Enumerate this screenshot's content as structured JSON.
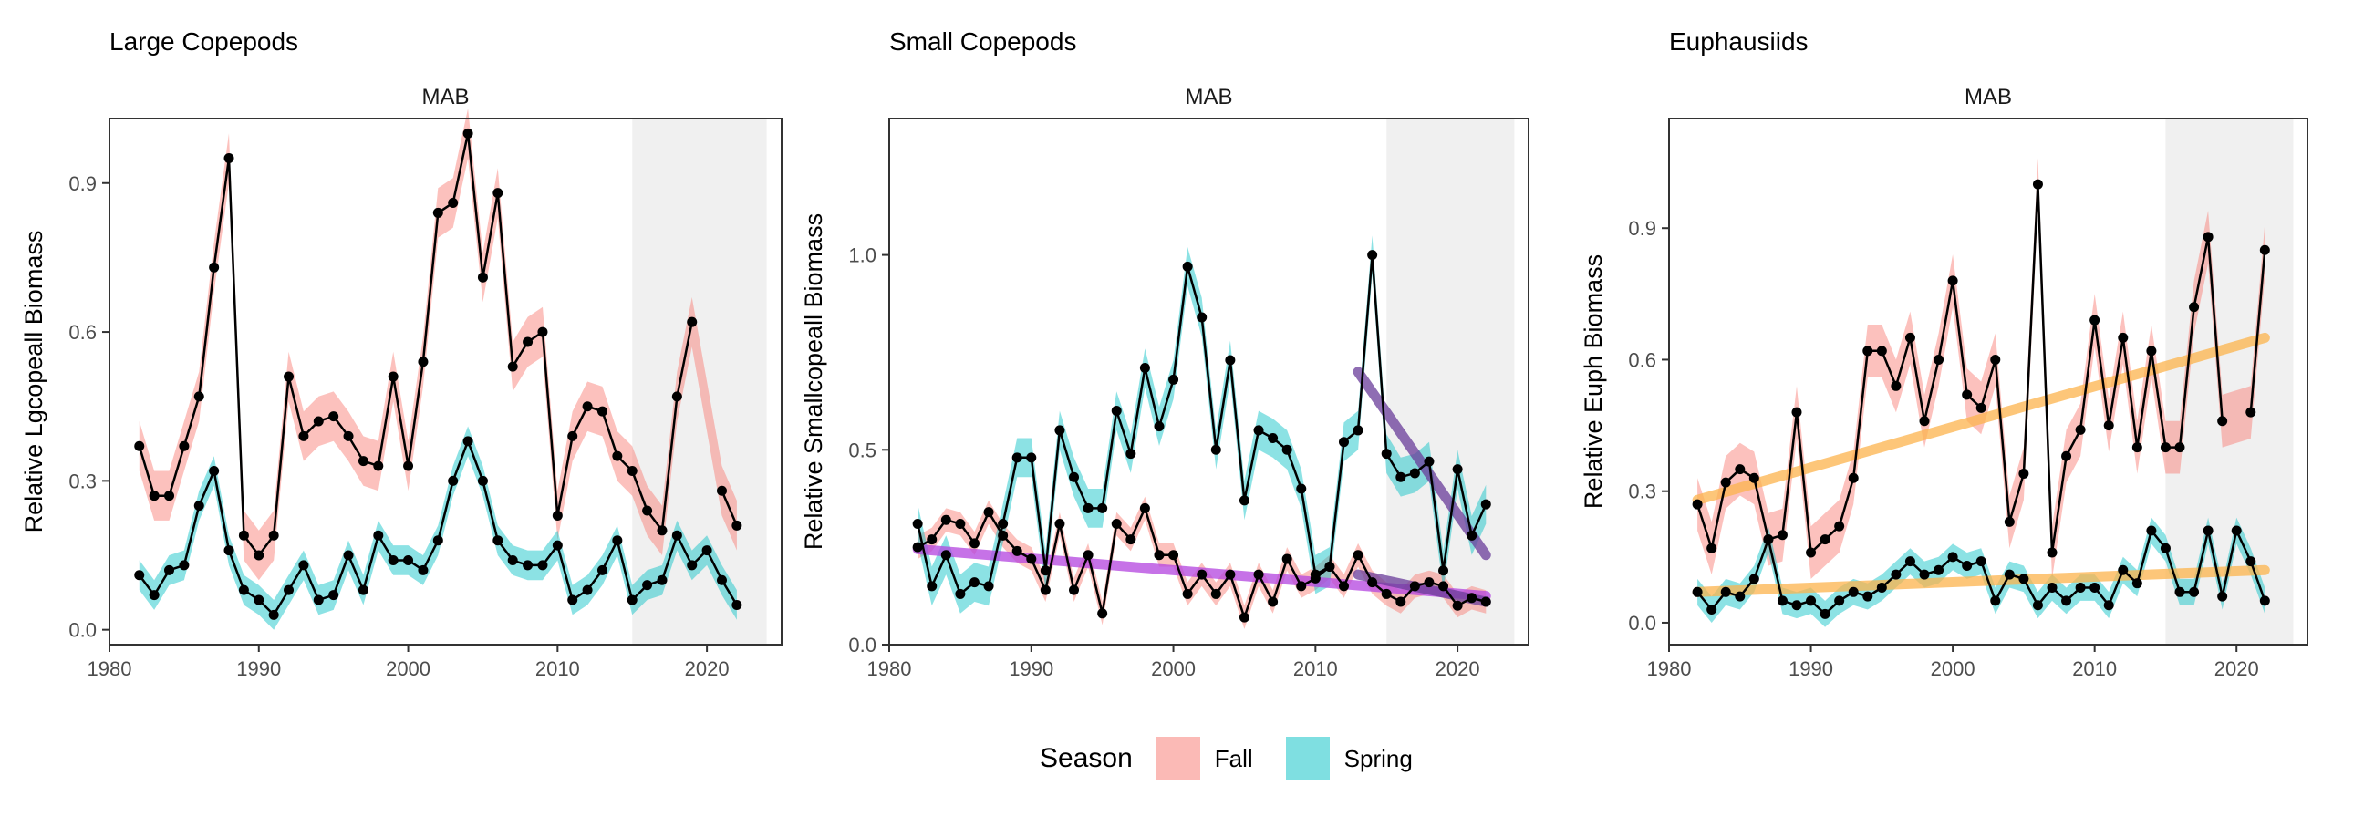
{
  "legend": {
    "title": "Season",
    "items": [
      {
        "label": "Fall",
        "color": "#F8766D"
      },
      {
        "label": "Spring",
        "color": "#00BFC4"
      }
    ]
  },
  "style": {
    "panel_shading": "#ebebeb",
    "fall_band": "#F8766D",
    "spring_band": "#00BFC4",
    "line_color": "#000000",
    "point_color": "#000000",
    "trend_colors": {
      "orange": "#FDB44D",
      "purple": "#6A3D9A",
      "violet": "#B444E0"
    }
  },
  "chart_data": [
    {
      "type": "line",
      "title": "Large Copepods",
      "facet": "MAB",
      "xlabel": "",
      "ylabel": "Relative Lgcopeall Biomass",
      "xlim": [
        1980,
        2025
      ],
      "ylim": [
        -0.03,
        1.03
      ],
      "xticks": [
        1980,
        1990,
        2000,
        2010,
        2020
      ],
      "yticks": [
        0.0,
        0.3,
        0.6,
        0.9
      ],
      "ytick_labels": [
        "0.0",
        "0.3",
        "0.6",
        "0.9"
      ],
      "grid": false,
      "shaded_range": [
        2015,
        2024
      ],
      "series": [
        {
          "name": "Fall",
          "x": [
            1982,
            1983,
            1984,
            1985,
            1986,
            1987,
            1988,
            1989,
            1990,
            1991,
            1992,
            1993,
            1994,
            1995,
            1996,
            1997,
            1998,
            1999,
            2000,
            2001,
            2002,
            2003,
            2004,
            2005,
            2006,
            2007,
            2008,
            2009,
            2010,
            2011,
            2012,
            2013,
            2014,
            2015,
            2016,
            2017,
            2018,
            2019,
            2021,
            2022
          ],
          "values": [
            0.37,
            0.27,
            0.27,
            0.37,
            0.47,
            0.73,
            0.95,
            0.19,
            0.15,
            0.19,
            0.51,
            0.39,
            0.42,
            0.43,
            0.39,
            0.34,
            0.33,
            0.51,
            0.33,
            0.54,
            0.84,
            0.86,
            1.0,
            0.71,
            0.88,
            0.53,
            0.58,
            0.6,
            0.23,
            0.39,
            0.45,
            0.44,
            0.35,
            0.32,
            0.24,
            0.2,
            0.47,
            0.62,
            0.28,
            0.21
          ],
          "band": 0.05
        },
        {
          "name": "Spring",
          "x": [
            1982,
            1983,
            1984,
            1985,
            1986,
            1987,
            1988,
            1989,
            1990,
            1991,
            1992,
            1993,
            1994,
            1995,
            1996,
            1997,
            1998,
            1999,
            2000,
            2001,
            2002,
            2003,
            2004,
            2005,
            2006,
            2007,
            2008,
            2009,
            2010,
            2011,
            2012,
            2013,
            2014,
            2015,
            2016,
            2017,
            2018,
            2019,
            2020,
            2021,
            2022
          ],
          "values": [
            0.11,
            0.07,
            0.12,
            0.13,
            0.25,
            0.32,
            0.16,
            0.08,
            0.06,
            0.03,
            0.08,
            0.13,
            0.06,
            0.07,
            0.15,
            0.08,
            0.19,
            0.14,
            0.14,
            0.12,
            0.18,
            0.3,
            0.38,
            0.3,
            0.18,
            0.14,
            0.13,
            0.13,
            0.17,
            0.06,
            0.08,
            0.12,
            0.18,
            0.06,
            0.09,
            0.1,
            0.19,
            0.13,
            0.16,
            0.1,
            0.05
          ],
          "band": 0.03
        }
      ],
      "trends": []
    },
    {
      "type": "line",
      "title": "Small Copepods",
      "facet": "MAB",
      "xlabel": "",
      "ylabel": "Relative Smallcopeall Biomass",
      "xlim": [
        1980,
        2025
      ],
      "ylim": [
        0.0,
        1.35
      ],
      "xticks": [
        1980,
        1990,
        2000,
        2010,
        2020
      ],
      "yticks": [
        0.0,
        0.5,
        1.0
      ],
      "ytick_labels": [
        "0.0",
        "0.5",
        "1.0"
      ],
      "grid": false,
      "shaded_range": [
        2015,
        2024
      ],
      "series": [
        {
          "name": "Fall",
          "x": [
            1982,
            1983,
            1984,
            1985,
            1986,
            1987,
            1988,
            1989,
            1990,
            1991,
            1992,
            1993,
            1994,
            1995,
            1996,
            1997,
            1998,
            1999,
            2000,
            2001,
            2002,
            2003,
            2004,
            2005,
            2006,
            2007,
            2008,
            2009,
            2010,
            2011,
            2012,
            2013,
            2014,
            2015,
            2016,
            2017,
            2018,
            2019,
            2020,
            2021,
            2022
          ],
          "values": [
            0.25,
            0.27,
            0.32,
            0.31,
            0.26,
            0.34,
            0.28,
            0.24,
            0.22,
            0.14,
            0.31,
            0.14,
            0.23,
            0.08,
            0.31,
            0.27,
            0.35,
            0.23,
            0.23,
            0.13,
            0.18,
            0.13,
            0.18,
            0.07,
            0.18,
            0.11,
            0.22,
            0.15,
            0.17,
            0.2,
            0.15,
            0.23,
            0.16,
            0.13,
            0.11,
            0.15,
            0.16,
            0.15,
            0.1,
            0.12,
            0.11
          ],
          "band": 0.03
        },
        {
          "name": "Spring",
          "x": [
            1982,
            1983,
            1984,
            1985,
            1986,
            1987,
            1988,
            1989,
            1990,
            1991,
            1992,
            1993,
            1994,
            1995,
            1996,
            1997,
            1998,
            1999,
            2000,
            2001,
            2002,
            2003,
            2004,
            2005,
            2006,
            2007,
            2008,
            2009,
            2010,
            2011,
            2012,
            2013,
            2014,
            2015,
            2016,
            2017,
            2018,
            2019,
            2020,
            2021,
            2022
          ],
          "values": [
            0.31,
            0.15,
            0.23,
            0.13,
            0.16,
            0.15,
            0.31,
            0.48,
            0.48,
            0.19,
            0.55,
            0.43,
            0.35,
            0.35,
            0.6,
            0.49,
            0.71,
            0.56,
            0.68,
            0.97,
            0.84,
            0.5,
            0.73,
            0.37,
            0.55,
            0.53,
            0.5,
            0.4,
            0.18,
            0.2,
            0.52,
            0.55,
            1.0,
            0.49,
            0.43,
            0.44,
            0.47,
            0.19,
            0.45,
            0.28,
            0.36
          ],
          "band": 0.05
        }
      ],
      "trends": [
        {
          "color": "violet",
          "x": [
            1982,
            2022
          ],
          "y": [
            0.245,
            0.125
          ]
        },
        {
          "color": "purple",
          "x": [
            2013,
            2022
          ],
          "y": [
            0.7,
            0.23
          ]
        },
        {
          "color": "purple",
          "x": [
            2013,
            2022
          ],
          "y": [
            0.18,
            0.11
          ]
        }
      ]
    },
    {
      "type": "line",
      "title": "Euphausiids",
      "facet": "MAB",
      "xlabel": "",
      "ylabel": "Relative Euph Biomass",
      "xlim": [
        1980,
        2025
      ],
      "ylim": [
        -0.05,
        1.15
      ],
      "xticks": [
        1980,
        1990,
        2000,
        2010,
        2020
      ],
      "yticks": [
        0.0,
        0.3,
        0.6,
        0.9
      ],
      "ytick_labels": [
        "0.0",
        "0.3",
        "0.6",
        "0.9"
      ],
      "grid": false,
      "shaded_range": [
        2015,
        2024
      ],
      "series": [
        {
          "name": "Fall",
          "x": [
            1982,
            1983,
            1984,
            1985,
            1986,
            1987,
            1988,
            1989,
            1990,
            1991,
            1992,
            1993,
            1994,
            1995,
            1996,
            1997,
            1998,
            1999,
            2000,
            2001,
            2002,
            2003,
            2004,
            2005,
            2006,
            2007,
            2008,
            2009,
            2010,
            2011,
            2012,
            2013,
            2014,
            2015,
            2016,
            2017,
            2018,
            2019,
            2021,
            2022
          ],
          "values": [
            0.27,
            0.17,
            0.32,
            0.35,
            0.33,
            0.19,
            0.2,
            0.48,
            0.16,
            0.19,
            0.22,
            0.33,
            0.62,
            0.62,
            0.54,
            0.65,
            0.46,
            0.6,
            0.78,
            0.52,
            0.49,
            0.6,
            0.23,
            0.34,
            1.0,
            0.16,
            0.38,
            0.44,
            0.69,
            0.45,
            0.65,
            0.4,
            0.62,
            0.4,
            0.4,
            0.72,
            0.88,
            0.46,
            0.48,
            0.85
          ],
          "band": 0.06
        },
        {
          "name": "Spring",
          "x": [
            1982,
            1983,
            1984,
            1985,
            1986,
            1987,
            1988,
            1989,
            1990,
            1991,
            1992,
            1993,
            1994,
            1995,
            1996,
            1997,
            1998,
            1999,
            2000,
            2001,
            2002,
            2003,
            2004,
            2005,
            2006,
            2007,
            2008,
            2009,
            2010,
            2011,
            2012,
            2013,
            2014,
            2015,
            2016,
            2017,
            2018,
            2019,
            2020,
            2021,
            2022
          ],
          "values": [
            0.07,
            0.03,
            0.07,
            0.06,
            0.1,
            0.19,
            0.05,
            0.04,
            0.05,
            0.02,
            0.05,
            0.07,
            0.06,
            0.08,
            0.11,
            0.14,
            0.11,
            0.12,
            0.15,
            0.13,
            0.14,
            0.05,
            0.11,
            0.1,
            0.04,
            0.08,
            0.05,
            0.08,
            0.08,
            0.04,
            0.12,
            0.09,
            0.21,
            0.17,
            0.07,
            0.07,
            0.21,
            0.06,
            0.21,
            0.14,
            0.05
          ],
          "band": 0.03
        }
      ],
      "trends": [
        {
          "color": "orange",
          "x": [
            1982,
            2022
          ],
          "y": [
            0.28,
            0.65
          ]
        },
        {
          "color": "orange",
          "x": [
            1982,
            2022
          ],
          "y": [
            0.07,
            0.12
          ]
        }
      ]
    }
  ]
}
